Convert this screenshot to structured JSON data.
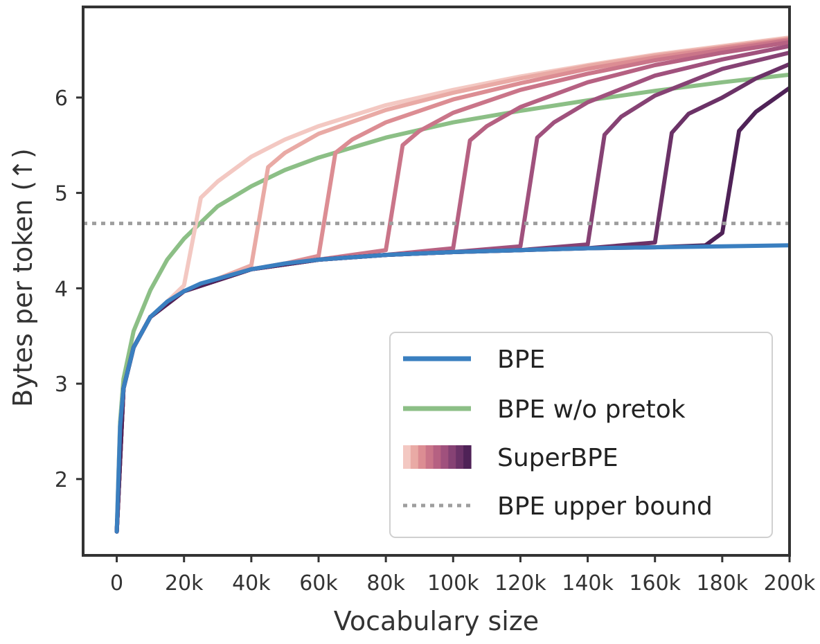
{
  "chart_data": {
    "type": "line",
    "title": "",
    "xlabel": "Vocabulary size",
    "ylabel": "Bytes per token (↑)",
    "xlim": [
      -10000,
      200000
    ],
    "ylim": [
      1.2,
      6.95
    ],
    "grid": false,
    "legend_position": "lower-right",
    "x_ticks": [
      {
        "value": 0,
        "label": "0"
      },
      {
        "value": 20000,
        "label": "20k"
      },
      {
        "value": 40000,
        "label": "40k"
      },
      {
        "value": 60000,
        "label": "60k"
      },
      {
        "value": 80000,
        "label": "80k"
      },
      {
        "value": 100000,
        "label": "100k"
      },
      {
        "value": 120000,
        "label": "120k"
      },
      {
        "value": 140000,
        "label": "140k"
      },
      {
        "value": 160000,
        "label": "160k"
      },
      {
        "value": 180000,
        "label": "180k"
      },
      {
        "value": 200000,
        "label": "200k"
      }
    ],
    "y_ticks": [
      {
        "value": 2,
        "label": "2"
      },
      {
        "value": 3,
        "label": "3"
      },
      {
        "value": 4,
        "label": "4"
      },
      {
        "value": 5,
        "label": "5"
      },
      {
        "value": 6,
        "label": "6"
      }
    ],
    "series": [
      {
        "name": "BPE",
        "color": "#3a7fc0",
        "x": [
          0,
          1000,
          2000,
          5000,
          10000,
          15000,
          20000,
          25000,
          30000,
          40000,
          50000,
          60000,
          80000,
          100000,
          120000,
          140000,
          160000,
          180000,
          200000
        ],
        "y": [
          1.45,
          2.55,
          2.95,
          3.38,
          3.7,
          3.86,
          3.97,
          4.05,
          4.1,
          4.2,
          4.26,
          4.3,
          4.35,
          4.38,
          4.4,
          4.42,
          4.43,
          4.44,
          4.45
        ]
      },
      {
        "name": "BPE w/o pretok",
        "color": "#8cbf86",
        "x": [
          0,
          1000,
          2000,
          5000,
          10000,
          15000,
          20000,
          30000,
          40000,
          50000,
          60000,
          80000,
          100000,
          120000,
          140000,
          160000,
          180000,
          200000
        ],
        "y": [
          1.45,
          2.6,
          3.05,
          3.55,
          3.98,
          4.3,
          4.52,
          4.86,
          5.07,
          5.24,
          5.37,
          5.58,
          5.74,
          5.86,
          5.97,
          6.07,
          6.16,
          6.24
        ]
      },
      {
        "name": "SuperBPE",
        "color": "#f3c8c2",
        "x": [
          0,
          1000,
          2000,
          5000,
          10000,
          15000,
          20000,
          25000,
          30000,
          40000,
          50000,
          60000,
          80000,
          100000,
          120000,
          140000,
          160000,
          180000,
          200000
        ],
        "y": [
          1.45,
          2.55,
          2.95,
          3.38,
          3.7,
          3.86,
          4.03,
          4.95,
          5.12,
          5.38,
          5.56,
          5.7,
          5.92,
          6.08,
          6.22,
          6.34,
          6.45,
          6.54,
          6.63
        ]
      },
      {
        "name": "SuperBPE",
        "color": "#e9aaa5",
        "x": [
          0,
          2000,
          5000,
          10000,
          20000,
          30000,
          40000,
          45000,
          50000,
          60000,
          80000,
          100000,
          120000,
          140000,
          160000,
          180000,
          200000
        ],
        "y": [
          1.45,
          2.95,
          3.38,
          3.7,
          3.97,
          4.1,
          4.24,
          5.27,
          5.42,
          5.62,
          5.87,
          6.05,
          6.2,
          6.33,
          6.44,
          6.53,
          6.62
        ]
      },
      {
        "name": "SuperBPE",
        "color": "#dc8d93",
        "x": [
          0,
          2000,
          5000,
          10000,
          20000,
          30000,
          40000,
          50000,
          60000,
          65000,
          70000,
          80000,
          100000,
          120000,
          140000,
          160000,
          180000,
          200000
        ],
        "y": [
          1.45,
          2.95,
          3.38,
          3.7,
          3.97,
          4.1,
          4.2,
          4.26,
          4.34,
          5.42,
          5.56,
          5.74,
          5.98,
          6.15,
          6.3,
          6.42,
          6.52,
          6.61
        ]
      },
      {
        "name": "SuperBPE",
        "color": "#ca7589",
        "x": [
          0,
          2000,
          5000,
          10000,
          20000,
          40000,
          60000,
          80000,
          85000,
          90000,
          100000,
          120000,
          140000,
          160000,
          180000,
          200000
        ],
        "y": [
          1.45,
          2.95,
          3.38,
          3.7,
          3.97,
          4.2,
          4.3,
          4.4,
          5.5,
          5.65,
          5.84,
          6.08,
          6.25,
          6.39,
          6.5,
          6.6
        ]
      },
      {
        "name": "SuperBPE",
        "color": "#b66182",
        "x": [
          0,
          2000,
          5000,
          10000,
          20000,
          40000,
          60000,
          80000,
          100000,
          105000,
          110000,
          120000,
          140000,
          160000,
          180000,
          200000
        ],
        "y": [
          1.45,
          2.95,
          3.38,
          3.7,
          3.97,
          4.2,
          4.3,
          4.35,
          4.42,
          5.55,
          5.7,
          5.9,
          6.16,
          6.34,
          6.47,
          6.58
        ]
      },
      {
        "name": "SuperBPE",
        "color": "#a0517d",
        "x": [
          0,
          2000,
          5000,
          10000,
          20000,
          40000,
          60000,
          80000,
          100000,
          120000,
          125000,
          130000,
          140000,
          160000,
          180000,
          200000
        ],
        "y": [
          1.45,
          2.95,
          3.38,
          3.7,
          3.97,
          4.2,
          4.3,
          4.35,
          4.38,
          4.44,
          5.58,
          5.74,
          5.95,
          6.23,
          6.4,
          6.54
        ]
      },
      {
        "name": "SuperBPE",
        "color": "#864274",
        "x": [
          0,
          2000,
          5000,
          10000,
          20000,
          40000,
          60000,
          80000,
          100000,
          120000,
          140000,
          145000,
          150000,
          160000,
          180000,
          200000
        ],
        "y": [
          1.45,
          2.95,
          3.38,
          3.7,
          3.97,
          4.2,
          4.3,
          4.35,
          4.38,
          4.4,
          4.46,
          5.61,
          5.8,
          6.02,
          6.3,
          6.47
        ]
      },
      {
        "name": "SuperBPE",
        "color": "#6b3267",
        "x": [
          0,
          2000,
          5000,
          10000,
          20000,
          40000,
          60000,
          80000,
          100000,
          120000,
          140000,
          160000,
          165000,
          170000,
          180000,
          190000,
          200000
        ],
        "y": [
          1.45,
          2.95,
          3.38,
          3.7,
          3.97,
          4.2,
          4.3,
          4.35,
          4.38,
          4.4,
          4.42,
          4.48,
          5.63,
          5.83,
          6.0,
          6.2,
          6.35
        ]
      },
      {
        "name": "SuperBPE",
        "color": "#4f2257",
        "x": [
          0,
          2000,
          5000,
          10000,
          20000,
          40000,
          60000,
          80000,
          100000,
          120000,
          140000,
          160000,
          175000,
          180000,
          185000,
          190000,
          200000
        ],
        "y": [
          1.45,
          2.95,
          3.38,
          3.7,
          3.97,
          4.2,
          4.3,
          4.35,
          4.38,
          4.4,
          4.42,
          4.43,
          4.45,
          4.58,
          5.65,
          5.85,
          6.1
        ]
      }
    ],
    "reference_lines": [
      {
        "name": "BPE upper bound",
        "y": 4.68,
        "color": "#9e9e9e",
        "style": "dotted"
      }
    ],
    "legend": [
      {
        "label": "BPE",
        "kind": "line",
        "color": "#3a7fc0"
      },
      {
        "label": "BPE w/o pretok",
        "kind": "line",
        "color": "#8cbf86"
      },
      {
        "label": "SuperBPE",
        "kind": "gradient",
        "colors": [
          "#f3c8c2",
          "#e9aaa5",
          "#dc8d93",
          "#ca7589",
          "#b66182",
          "#a0517d",
          "#864274",
          "#6b3267",
          "#4f2257"
        ]
      },
      {
        "label": "BPE upper bound",
        "kind": "dotted",
        "color": "#9e9e9e"
      }
    ]
  }
}
